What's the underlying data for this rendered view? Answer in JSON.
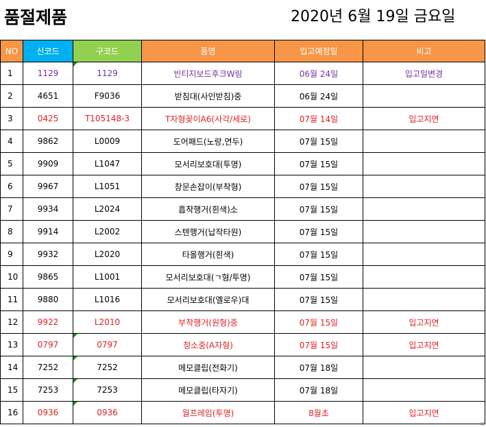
{
  "header": {
    "title": "품절제품",
    "date": "2020년 6월 19일 금요일"
  },
  "columns": {
    "no": "NO",
    "new_code": "신코드",
    "old_code": "구코드",
    "name": "품명",
    "date": "입고예정일",
    "remark": "비고"
  },
  "colors": {
    "header_orange": "#f79646",
    "header_blue": "#00b0f0",
    "header_green": "#92d050",
    "text_red": "#e02020",
    "text_purple": "#7030a0"
  },
  "rows": [
    {
      "no": "1",
      "new_code": "1129",
      "old_code": "1129",
      "name": "빈티지보드후크W링",
      "date": "06월 24일",
      "remark": "입고일변경",
      "style": "purple"
    },
    {
      "no": "2",
      "new_code": "4651",
      "old_code": "F9036",
      "name": "받침대(사인받침)중",
      "date": "06월 24일",
      "remark": "",
      "style": "normal"
    },
    {
      "no": "3",
      "new_code": "0425",
      "old_code": "T105148-3",
      "name": "T자형꽂이A6(사각/세로)",
      "date": "07월 14일",
      "remark": "입고지연",
      "style": "red"
    },
    {
      "no": "4",
      "new_code": "9862",
      "old_code": "L0009",
      "name": "도어패드(노랑,연두)",
      "date": "07월 15일",
      "remark": "",
      "style": "normal"
    },
    {
      "no": "5",
      "new_code": "9909",
      "old_code": "L1047",
      "name": "모서리보호대(투명)",
      "date": "07월 15일",
      "remark": "",
      "style": "normal"
    },
    {
      "no": "6",
      "new_code": "9967",
      "old_code": "L1051",
      "name": "창문손잡이(부착형)",
      "date": "07월 15일",
      "remark": "",
      "style": "normal"
    },
    {
      "no": "7",
      "new_code": "9934",
      "old_code": "L2024",
      "name": "흡착행거(흰색)소",
      "date": "07월 15일",
      "remark": "",
      "style": "normal"
    },
    {
      "no": "8",
      "new_code": "9914",
      "old_code": "L2002",
      "name": "스텐행거(납작타원)",
      "date": "07월 15일",
      "remark": "",
      "style": "normal"
    },
    {
      "no": "9",
      "new_code": "9932",
      "old_code": "L2020",
      "name": "타올행거(흰색)",
      "date": "07월 15일",
      "remark": "",
      "style": "normal"
    },
    {
      "no": "10",
      "new_code": "9865",
      "old_code": "L1001",
      "name": "모서리보호대(ㄱ형/투명)",
      "date": "07월 15일",
      "remark": "",
      "style": "normal"
    },
    {
      "no": "11",
      "new_code": "9880",
      "old_code": "L1016",
      "name": "모서리보호대(옐로우)대",
      "date": "07월 15일",
      "remark": "",
      "style": "normal"
    },
    {
      "no": "12",
      "new_code": "9922",
      "old_code": "L2010",
      "name": "부착행거(원형)중",
      "date": "07월 15일",
      "remark": "입고지연",
      "style": "red"
    },
    {
      "no": "13",
      "new_code": "0797",
      "old_code": "0797",
      "name": "청소중(A자형)",
      "date": "07월 15일",
      "remark": "입고지연",
      "style": "red"
    },
    {
      "no": "14",
      "new_code": "7252",
      "old_code": "7252",
      "name": "메모클립(전화기)",
      "date": "07월 18일",
      "remark": "",
      "style": "normal"
    },
    {
      "no": "15",
      "new_code": "7253",
      "old_code": "7253",
      "name": "메모클립(타자기)",
      "date": "07월 18일",
      "remark": "",
      "style": "normal"
    },
    {
      "no": "16",
      "new_code": "0936",
      "old_code": "0936",
      "name": "월프레임(투명)",
      "date": "8월초",
      "remark": "입고지연",
      "style": "red"
    }
  ]
}
